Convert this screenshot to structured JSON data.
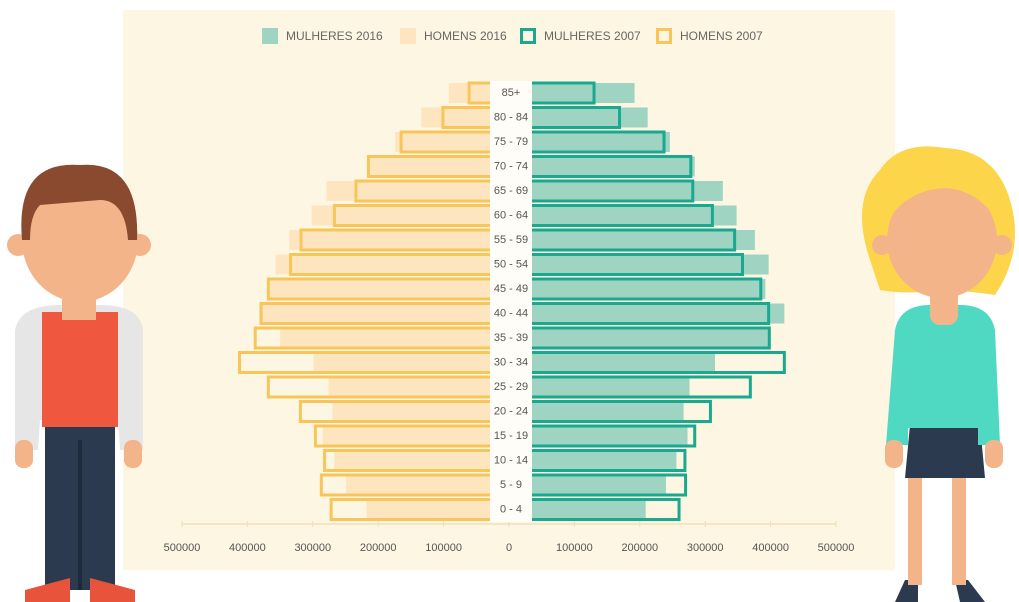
{
  "chart_data": {
    "type": "pyramid",
    "categories": [
      "85+",
      "80 - 84",
      "75 - 79",
      "70 - 74",
      "65 - 69",
      "60 - 64",
      "55 - 59",
      "50 - 54",
      "45 - 49",
      "40 - 44",
      "35 - 39",
      "30 - 34",
      "25 - 29",
      "20 - 24",
      "15 - 19",
      "10 - 14",
      "5 - 9",
      "0 - 4"
    ],
    "series": [
      {
        "name": "MULHERES 2016",
        "color": "#9fd4c3",
        "style": "filled",
        "side": "right",
        "values": [
          192000,
          212000,
          246000,
          284000,
          327000,
          348000,
          376000,
          397000,
          392000,
          421000,
          397000,
          315000,
          276000,
          267000,
          273000,
          256000,
          240000,
          209000
        ]
      },
      {
        "name": "HOMENS 2016",
        "color": "#fde6bf",
        "style": "filled",
        "side": "left",
        "values": [
          92000,
          134000,
          174000,
          214000,
          279000,
          302000,
          336000,
          357000,
          368000,
          382000,
          350000,
          299000,
          276000,
          270000,
          285000,
          267000,
          249000,
          218000
        ]
      },
      {
        "name": "MULHERES 2007",
        "color": "#1aa88f",
        "style": "outline",
        "side": "right",
        "values": [
          130000,
          169000,
          237000,
          278000,
          281000,
          311000,
          345000,
          357000,
          385000,
          397000,
          398000,
          421000,
          369000,
          308000,
          284000,
          269000,
          270000,
          260000
        ]
      },
      {
        "name": "HOMENS 2007",
        "color": "#f8c55a",
        "style": "outline",
        "side": "left",
        "values": [
          61000,
          101000,
          165000,
          215000,
          234000,
          267000,
          318000,
          334000,
          368000,
          379000,
          388000,
          412000,
          368000,
          319000,
          296000,
          282000,
          287000,
          272000
        ]
      }
    ],
    "xlim": [
      -500000,
      500000
    ],
    "xticks": [
      {
        "value": -500000,
        "label": "500000"
      },
      {
        "value": -400000,
        "label": "400000"
      },
      {
        "value": -300000,
        "label": "300000"
      },
      {
        "value": -200000,
        "label": "200000"
      },
      {
        "value": -100000,
        "label": "100000"
      },
      0,
      100000,
      200000,
      300000,
      400000,
      500000
    ]
  }
}
